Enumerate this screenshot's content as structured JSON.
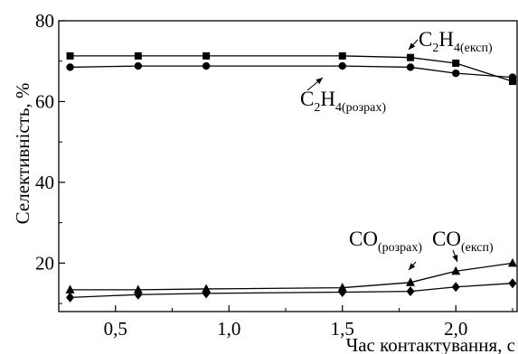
{
  "chart_data": {
    "type": "line",
    "title": "",
    "xlabel": "Час контактування, с",
    "ylabel": "Селективність, %",
    "xlim": [
      0.25,
      2.27
    ],
    "ylim": [
      8,
      80
    ],
    "x_ticks": [
      0.5,
      1.0,
      1.5,
      2.0
    ],
    "x_tick_labels": [
      "0,5",
      "1,0",
      "1,5",
      "2,0"
    ],
    "y_ticks": [
      20,
      40,
      60,
      80
    ],
    "y_tick_labels": [
      "20",
      "40",
      "60",
      "80"
    ],
    "grid": false,
    "legend": "none",
    "x": [
      0.3,
      0.6,
      0.9,
      1.5,
      1.8,
      2.0,
      2.25
    ],
    "series": [
      {
        "name": "C2H4(експ)",
        "marker": "square",
        "values": [
          71.3,
          71.3,
          71.3,
          71.3,
          70.9,
          69.5,
          65.0
        ]
      },
      {
        "name": "C2H4(розрах)",
        "marker": "circle",
        "values": [
          68.5,
          68.8,
          68.8,
          68.8,
          68.5,
          67.0,
          66.0
        ]
      },
      {
        "name": "CO(експ)",
        "marker": "triangle",
        "values": [
          13.4,
          13.4,
          13.6,
          13.9,
          15.2,
          18.0,
          20.0
        ]
      },
      {
        "name": "CO(розрах)",
        "marker": "diamond",
        "values": [
          11.5,
          12.2,
          12.5,
          12.8,
          13.0,
          14.1,
          15.0
        ]
      }
    ],
    "annotations": [
      {
        "base": "C",
        "sub1": "2",
        "mid": "H",
        "sub2": "4(експ)"
      },
      {
        "base": "C",
        "sub1": "2",
        "mid": "H",
        "sub2": "4(розрах)"
      },
      {
        "base": "CO",
        "sub1": "(розрах)"
      },
      {
        "base": "CO",
        "sub1": "(експ)"
      }
    ]
  }
}
